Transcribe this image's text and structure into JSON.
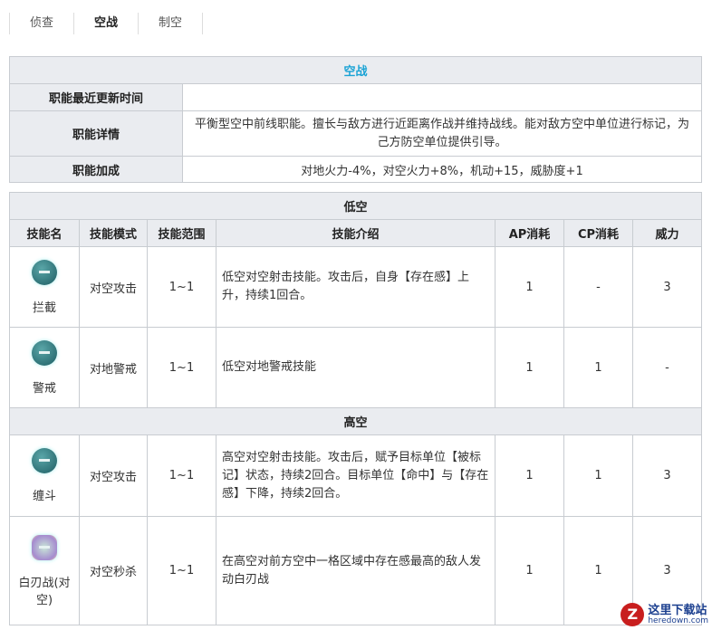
{
  "tabs": [
    {
      "label": "侦查"
    },
    {
      "label": "空战",
      "active": true
    },
    {
      "label": "制空"
    }
  ],
  "role": {
    "title": "空战",
    "rows": [
      {
        "label": "职能最近更新时间",
        "value": ""
      },
      {
        "label": "职能详情",
        "value": "平衡型空中前线职能。擅长与敌方进行近距离作战并维持战线。能对敌方空中单位进行标记，为己方防空单位提供引导。"
      },
      {
        "label": "职能加成",
        "value": "对地火力-4%，对空火力+8%，机动+15，威胁度+1"
      }
    ]
  },
  "skills": {
    "headers": [
      "技能名",
      "技能模式",
      "技能范围",
      "技能介绍",
      "AP消耗",
      "CP消耗",
      "威力"
    ],
    "groups": [
      {
        "title": "低空",
        "rows": [
          {
            "name": "拦截",
            "icon": "interception-skill-icon",
            "mode": "对空攻击",
            "range": "1~1",
            "desc": "低空对空射击技能。攻击后，自身【存在感】上升，持续1回合。",
            "ap": "1",
            "cp": "-",
            "power": "3"
          },
          {
            "name": "警戒",
            "icon": "alert-skill-icon",
            "mode": "对地警戒",
            "range": "1~1",
            "desc": "低空对地警戒技能",
            "ap": "1",
            "cp": "1",
            "power": "-"
          }
        ]
      },
      {
        "title": "高空",
        "rows": [
          {
            "name": "缠斗",
            "icon": "dogfight-skill-icon",
            "mode": "对空攻击",
            "range": "1~1",
            "desc": "高空对空射击技能。攻击后，赋予目标单位【被标记】状态，持续2回合。目标单位【命中】与【存在感】下降，持续2回合。",
            "ap": "1",
            "cp": "1",
            "power": "3"
          },
          {
            "name": "白刃战(对空)",
            "icon": "melee-skill-icon",
            "mode": "对空秒杀",
            "range": "1~1",
            "desc": "在高空对前方空中一格区域中存在感最高的敌人发动白刃战",
            "ap": "1",
            "cp": "1",
            "power": "3"
          }
        ]
      }
    ]
  },
  "watermark": {
    "name": "这里下载站",
    "url": "heredown.com"
  }
}
